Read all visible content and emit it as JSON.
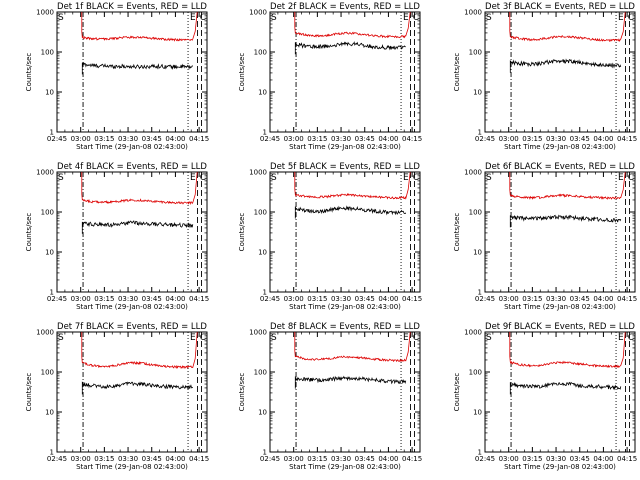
{
  "figure": {
    "background": "#ffffff",
    "events_color": "#000000",
    "lld_color": "#dd0000"
  },
  "common": {
    "x_tick_labels": [
      "02:45",
      "03:00",
      "03:15",
      "03:30",
      "03:45",
      "04:00",
      "04:15"
    ],
    "x_tick_minutes": [
      0,
      15,
      30,
      45,
      60,
      75,
      90
    ],
    "xlim_minutes": [
      0,
      95
    ],
    "y_tick_labels": [
      "1",
      "10",
      "100",
      "1000"
    ],
    "ylim": [
      1,
      1000
    ],
    "ylabel": "Counts/sec",
    "xlabel": "Start Time (29-Jan-08 02:43:00)",
    "marker_S": "S",
    "marker_E": "E",
    "marker_C": "C"
  },
  "chart_data": [
    {
      "type": "line",
      "title": "Det 1f BLACK = Events, RED = LLD",
      "y_scale": "log",
      "x_range_minutes": [
        16,
        86
      ],
      "series": [
        {
          "name": "BLACK = Events",
          "color": "#000000",
          "values": [
            50,
            46,
            45,
            44,
            44,
            43,
            43,
            44,
            44,
            43,
            43,
            42
          ]
        },
        {
          "name": "RED = LLD",
          "color": "#dd0000",
          "values": [
            230,
            215,
            210,
            215,
            230,
            235,
            230,
            220,
            210,
            205,
            200,
            205
          ]
        }
      ],
      "markers_minutes": {
        "dashdot": 16.5,
        "dotted": 83,
        "dashed": [
          89,
          91.5
        ]
      }
    },
    {
      "type": "line",
      "title": "Det 2f BLACK = Events, RED = LLD",
      "y_scale": "log",
      "x_range_minutes": [
        16,
        86
      ],
      "series": [
        {
          "name": "BLACK = Events",
          "color": "#000000",
          "values": [
            160,
            140,
            135,
            138,
            148,
            160,
            158,
            145,
            135,
            130,
            128,
            130
          ]
        },
        {
          "name": "RED = LLD",
          "color": "#dd0000",
          "values": [
            300,
            270,
            255,
            260,
            280,
            300,
            290,
            270,
            255,
            245,
            240,
            245
          ]
        }
      ],
      "markers_minutes": {
        "dashdot": 16.5,
        "dotted": 83,
        "dashed": [
          89,
          91.5
        ]
      }
    },
    {
      "type": "line",
      "title": "Det 3f BLACK = Events, RED = LLD",
      "y_scale": "log",
      "x_range_minutes": [
        16,
        86
      ],
      "series": [
        {
          "name": "BLACK = Events",
          "color": "#000000",
          "values": [
            55,
            52,
            50,
            52,
            58,
            60,
            58,
            54,
            50,
            48,
            47,
            46
          ]
        },
        {
          "name": "RED = LLD",
          "color": "#dd0000",
          "values": [
            240,
            215,
            205,
            210,
            230,
            245,
            238,
            225,
            210,
            200,
            195,
            200
          ]
        }
      ],
      "markers_minutes": {
        "dashdot": 16.5,
        "dotted": 83,
        "dashed": [
          89,
          91.5
        ]
      }
    },
    {
      "type": "line",
      "title": "Det 4f BLACK = Events, RED = LLD",
      "y_scale": "log",
      "x_range_minutes": [
        16,
        86
      ],
      "series": [
        {
          "name": "BLACK = Events",
          "color": "#000000",
          "values": [
            52,
            50,
            48,
            48,
            52,
            54,
            52,
            50,
            49,
            48,
            47,
            46
          ]
        },
        {
          "name": "RED = LLD",
          "color": "#dd0000",
          "values": [
            200,
            180,
            175,
            178,
            190,
            200,
            195,
            185,
            178,
            172,
            168,
            170
          ]
        }
      ],
      "markers_minutes": {
        "dashdot": 16.5,
        "dotted": 83,
        "dashed": [
          89,
          91.5
        ]
      }
    },
    {
      "type": "line",
      "title": "Det 5f BLACK = Events, RED = LLD",
      "y_scale": "log",
      "x_range_minutes": [
        16,
        86
      ],
      "series": [
        {
          "name": "BLACK = Events",
          "color": "#000000",
          "values": [
            125,
            110,
            105,
            108,
            118,
            125,
            122,
            112,
            105,
            100,
            98,
            100
          ]
        },
        {
          "name": "RED = LLD",
          "color": "#dd0000",
          "values": [
            270,
            245,
            235,
            240,
            258,
            270,
            262,
            248,
            238,
            230,
            225,
            230
          ]
        }
      ],
      "markers_minutes": {
        "dashdot": 16.5,
        "dotted": 83,
        "dashed": [
          89,
          91.5
        ]
      }
    },
    {
      "type": "line",
      "title": "Det 6f BLACK = Events, RED = LLD",
      "y_scale": "log",
      "x_range_minutes": [
        16,
        86
      ],
      "series": [
        {
          "name": "BLACK = Events",
          "color": "#000000",
          "values": [
            75,
            70,
            68,
            70,
            74,
            76,
            74,
            70,
            67,
            65,
            63,
            62
          ]
        },
        {
          "name": "RED = LLD",
          "color": "#dd0000",
          "values": [
            260,
            235,
            228,
            232,
            248,
            260,
            255,
            245,
            235,
            228,
            222,
            225
          ]
        }
      ],
      "markers_minutes": {
        "dashdot": 16.5,
        "dotted": 83,
        "dashed": [
          89,
          91.5
        ]
      }
    },
    {
      "type": "line",
      "title": "Det 7f BLACK = Events, RED = LLD",
      "y_scale": "log",
      "x_range_minutes": [
        16,
        86
      ],
      "series": [
        {
          "name": "BLACK = Events",
          "color": "#000000",
          "values": [
            50,
            46,
            44,
            44,
            48,
            52,
            50,
            46,
            44,
            43,
            42,
            42
          ]
        },
        {
          "name": "RED = LLD",
          "color": "#dd0000",
          "values": [
            170,
            145,
            138,
            142,
            158,
            170,
            165,
            150,
            140,
            135,
            132,
            135
          ]
        }
      ],
      "markers_minutes": {
        "dashdot": 16.5,
        "dotted": 83,
        "dashed": [
          89,
          91.5
        ]
      }
    },
    {
      "type": "line",
      "title": "Det 8f BLACK = Events, RED = LLD",
      "y_scale": "log",
      "x_range_minutes": [
        16,
        86
      ],
      "series": [
        {
          "name": "BLACK = Events",
          "color": "#000000",
          "values": [
            70,
            65,
            63,
            64,
            68,
            72,
            70,
            66,
            63,
            60,
            58,
            58
          ]
        },
        {
          "name": "RED = LLD",
          "color": "#dd0000",
          "values": [
            240,
            215,
            205,
            210,
            228,
            240,
            232,
            220,
            208,
            200,
            195,
            198
          ]
        }
      ],
      "markers_minutes": {
        "dashdot": 16.5,
        "dotted": 83,
        "dashed": [
          89,
          91.5
        ]
      }
    },
    {
      "type": "line",
      "title": "Det 9f BLACK = Events, RED = LLD",
      "y_scale": "log",
      "x_range_minutes": [
        16,
        86
      ],
      "series": [
        {
          "name": "BLACK = Events",
          "color": "#000000",
          "values": [
            50,
            46,
            44,
            44,
            48,
            52,
            50,
            46,
            44,
            43,
            42,
            42
          ]
        },
        {
          "name": "RED = LLD",
          "color": "#dd0000",
          "values": [
            175,
            152,
            145,
            148,
            162,
            175,
            170,
            158,
            148,
            142,
            138,
            140
          ]
        }
      ],
      "markers_minutes": {
        "dashdot": 16.5,
        "dotted": 83,
        "dashed": [
          89,
          91.5
        ]
      }
    }
  ]
}
